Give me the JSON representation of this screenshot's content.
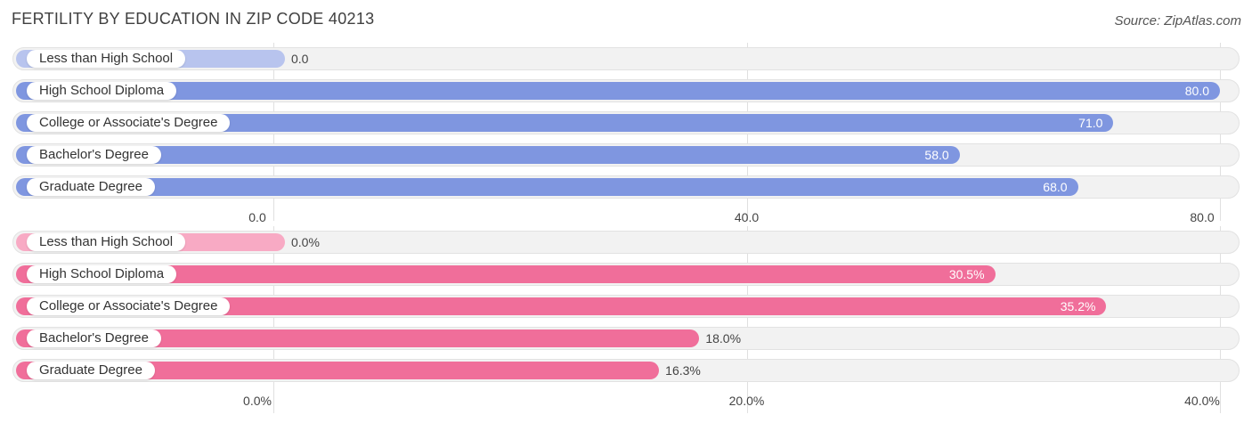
{
  "title": "FERTILITY BY EDUCATION IN ZIP CODE 40213",
  "source": "Source: ZipAtlas.com",
  "chart_data": [
    {
      "type": "bar",
      "orientation": "horizontal",
      "categories": [
        "Less than High School",
        "High School Diploma",
        "College or Associate's Degree",
        "Bachelor's Degree",
        "Graduate Degree"
      ],
      "values": [
        0.0,
        80.0,
        71.0,
        58.0,
        68.0
      ],
      "value_labels": [
        "0.0",
        "80.0",
        "71.0",
        "58.0",
        "68.0"
      ],
      "xlim": [
        0,
        80
      ],
      "ticks": [
        "0.0",
        "40.0",
        "80.0"
      ],
      "tick_values": [
        0,
        40,
        80
      ],
      "color": "#7f96e0",
      "color_light": "#b8c4ee",
      "grid": true
    },
    {
      "type": "bar",
      "orientation": "horizontal",
      "categories": [
        "Less than High School",
        "High School Diploma",
        "College or Associate's Degree",
        "Bachelor's Degree",
        "Graduate Degree"
      ],
      "values": [
        0.0,
        30.5,
        35.2,
        18.0,
        16.3
      ],
      "value_labels": [
        "0.0%",
        "30.5%",
        "35.2%",
        "18.0%",
        "16.3%"
      ],
      "xlim": [
        0,
        40
      ],
      "ticks": [
        "0.0%",
        "20.0%",
        "40.0%"
      ],
      "tick_values": [
        0,
        20,
        40
      ],
      "color": "#f06e9a",
      "color_light": "#f8aac4",
      "grid": true
    }
  ]
}
